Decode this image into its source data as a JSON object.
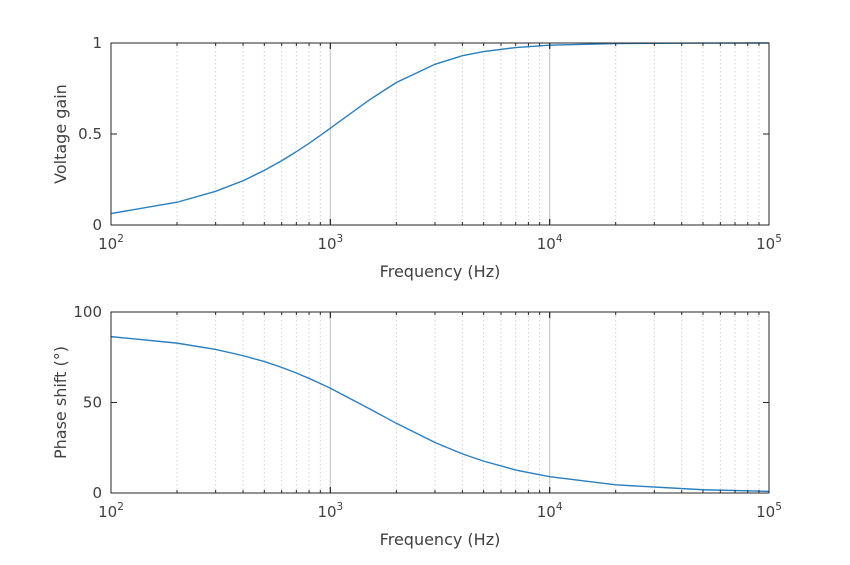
{
  "chart_data": [
    {
      "type": "line",
      "xscale": "log",
      "xlim": [
        100,
        100000
      ],
      "ylim": [
        0,
        1
      ],
      "xlabel": "Frequency (Hz)",
      "ylabel": "Voltage gain",
      "yticks": [
        "0",
        "0.5",
        "1"
      ],
      "xticks": [
        {
          "base": "10",
          "exp": "2"
        },
        {
          "base": "10",
          "exp": "3"
        },
        {
          "base": "10",
          "exp": "4"
        },
        {
          "base": "10",
          "exp": "5"
        }
      ],
      "grid": "vertical",
      "color": "#2a7fbf",
      "series": [
        {
          "x": [
            100,
            200,
            300,
            400,
            500,
            600,
            700,
            800,
            900,
            1000,
            1500,
            2000,
            3000,
            4000,
            5000,
            7000,
            10000,
            20000,
            50000,
            100000
          ],
          "y": [
            0.063,
            0.125,
            0.185,
            0.243,
            0.3,
            0.353,
            0.403,
            0.449,
            0.492,
            0.532,
            0.686,
            0.783,
            0.883,
            0.93,
            0.953,
            0.975,
            0.988,
            0.997,
            0.9995,
            1.0
          ]
        }
      ]
    },
    {
      "type": "line",
      "xscale": "log",
      "xlim": [
        100,
        100000
      ],
      "ylim": [
        0,
        100
      ],
      "xlabel": "Frequency (Hz)",
      "ylabel": "Phase shift (°)",
      "yticks": [
        "0",
        "50",
        "100"
      ],
      "xticks": [
        {
          "base": "10",
          "exp": "2"
        },
        {
          "base": "10",
          "exp": "3"
        },
        {
          "base": "10",
          "exp": "4"
        },
        {
          "base": "10",
          "exp": "5"
        }
      ],
      "grid": "vertical",
      "color": "#2a7fbf",
      "series": [
        {
          "x": [
            100,
            200,
            300,
            400,
            500,
            600,
            700,
            800,
            900,
            1000,
            1500,
            2000,
            3000,
            4000,
            5000,
            7000,
            10000,
            20000,
            50000,
            100000
          ],
          "y": [
            86.4,
            82.8,
            79.3,
            75.9,
            72.6,
            69.4,
            66.3,
            63.3,
            60.5,
            57.9,
            46.7,
            38.5,
            27.9,
            21.6,
            17.6,
            12.7,
            9.0,
            4.5,
            1.8,
            0.9
          ]
        }
      ]
    }
  ]
}
